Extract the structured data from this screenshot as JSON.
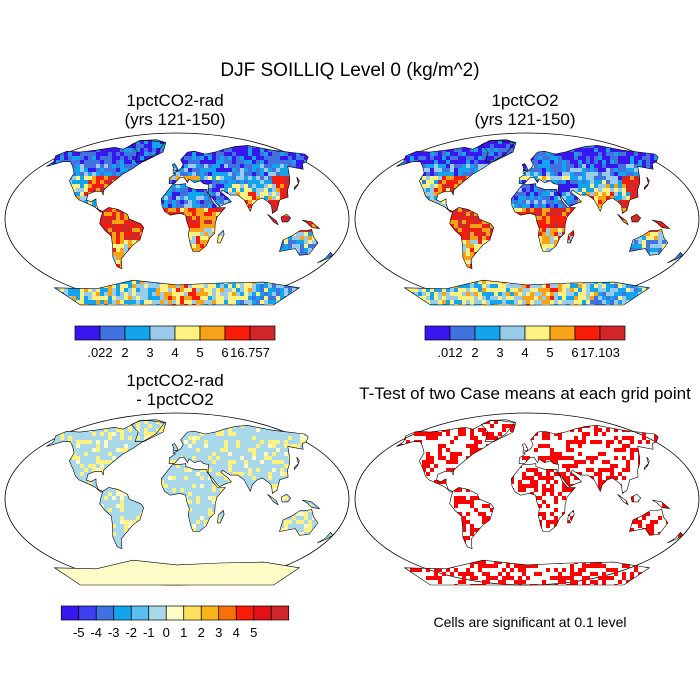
{
  "figure": {
    "title": "DJF SOILLIQ Level 0 (kg/m^2)",
    "note": "Cells are significant at 0.1 level"
  },
  "panels": [
    {
      "id": "rad",
      "title_lines": [
        "1pctCO2-rad",
        "(yrs 121-150)"
      ],
      "variant": "field",
      "colorbar": {
        "colors": [
          "#3a16ee",
          "#4173e0",
          "#12a5ee",
          "#9bcbeb",
          "#fdf281",
          "#f8a215",
          "#f81c09",
          "#d1272b"
        ],
        "labels": [
          ".022",
          "2",
          "3",
          "4",
          "5",
          "6",
          "16.757"
        ]
      }
    },
    {
      "id": "ref",
      "title_lines": [
        "1pctCO2",
        "(yrs 121-150)"
      ],
      "variant": "field",
      "colorbar": {
        "colors": [
          "#3a16ee",
          "#4173e0",
          "#12a5ee",
          "#9bcbeb",
          "#fdf281",
          "#f8a215",
          "#f81c09",
          "#d1272b"
        ],
        "labels": [
          ".012",
          "2",
          "3",
          "4",
          "5",
          "6",
          "17.103"
        ]
      }
    },
    {
      "id": "diff",
      "title_lines": [
        "1pctCO2-rad",
        "- 1pctCO2"
      ],
      "variant": "diff",
      "colorbar": {
        "colors": [
          "#3a16ee",
          "#3d3ff0",
          "#4173e0",
          "#12a5ee",
          "#5bbdf2",
          "#a8d8ea",
          "#fdfbc6",
          "#fde05d",
          "#f8b515",
          "#f86f0d",
          "#f81c09",
          "#e41018",
          "#d1272b"
        ],
        "labels": [
          "-5",
          "-4",
          "-3",
          "-2",
          "-1",
          "0",
          "1",
          "2",
          "3",
          "4",
          "5"
        ]
      }
    },
    {
      "id": "ttest",
      "title_lines": [
        "T-Test of two Case means at each grid point"
      ],
      "variant": "ttest"
    }
  ]
}
